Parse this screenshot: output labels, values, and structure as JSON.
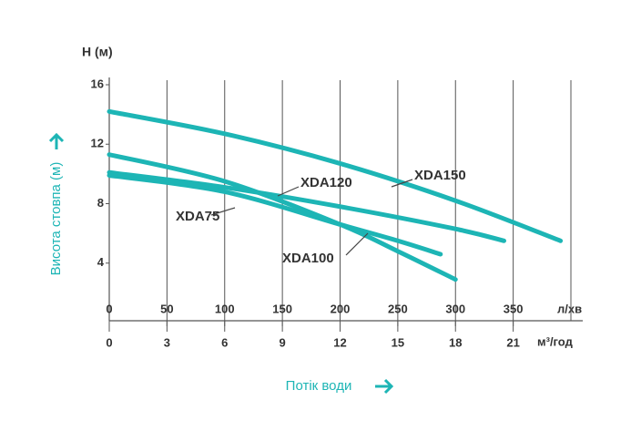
{
  "chart_data": {
    "type": "line",
    "ylabel": "H (м)",
    "ylabel_side": "Висота стовпа (м)",
    "xlabel": "Потік води",
    "xunit": "л/хв",
    "x2unit": "м³/год",
    "xlim": [
      0,
      400
    ],
    "xticks": [
      0,
      50,
      100,
      150,
      200,
      250,
      300,
      350
    ],
    "x2lim": [
      0,
      24
    ],
    "x2ticks": [
      0,
      3,
      6,
      9,
      12,
      15,
      18,
      21
    ],
    "ylim": [
      0,
      16
    ],
    "yticks": [
      4,
      8,
      12,
      16
    ],
    "grid": "x",
    "series": [
      {
        "name": "XDA150",
        "color": "#1db5b5",
        "x": [
          0,
          100,
          200,
          300,
          391
        ],
        "values": [
          14.2,
          12.7,
          10.7,
          8.2,
          5.5
        ]
      },
      {
        "name": "XDA120",
        "color": "#1db5b5",
        "x": [
          0,
          100,
          200,
          300,
          342
        ],
        "values": [
          10.1,
          9.1,
          7.8,
          6.3,
          5.5
        ]
      },
      {
        "name": "XDA75",
        "color": "#1db5b5",
        "x": [
          0,
          100,
          200,
          250,
          287
        ],
        "values": [
          9.9,
          8.8,
          6.6,
          5.5,
          4.6
        ]
      },
      {
        "name": "XDA100",
        "color": "#1db5b5",
        "x": [
          0,
          100,
          200,
          250,
          300
        ],
        "values": [
          11.3,
          9.5,
          6.6,
          4.8,
          2.9
        ]
      }
    ]
  }
}
